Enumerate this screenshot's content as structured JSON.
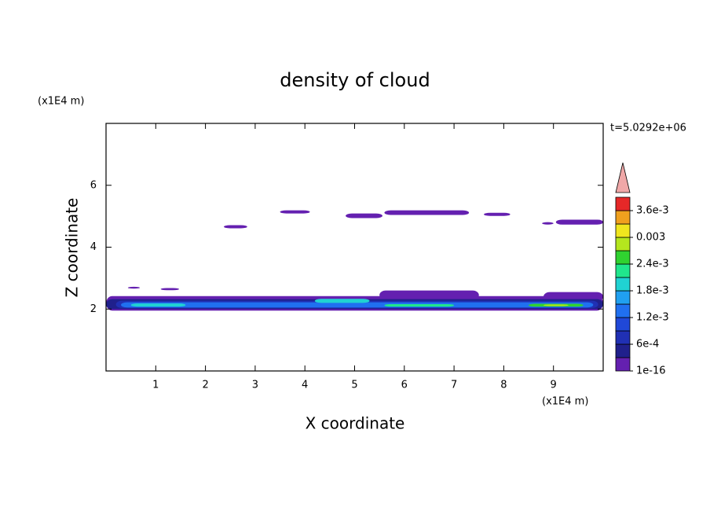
{
  "chart_data": {
    "type": "contour",
    "title": "density of cloud",
    "x_label": "X coordinate",
    "y_label": "Z coordinate",
    "x_unit": "(x1E4 m)",
    "y_unit": "(x1E4 m)",
    "time_label": "t=5.0292e+06",
    "xlim": [
      0,
      10
    ],
    "ylim": [
      0,
      8
    ],
    "xticks": [
      1,
      2,
      3,
      4,
      5,
      6,
      7,
      8,
      9
    ],
    "yticks": [
      2,
      4,
      6
    ],
    "colorbar": {
      "clim": [
        0,
        0.0039
      ],
      "over_color": "#f0a8a8",
      "colors": [
        "#6420b0",
        "#20208c",
        "#2030b4",
        "#2048d8",
        "#2070f0",
        "#20a0f0",
        "#20d2d2",
        "#20e68c",
        "#30d230",
        "#b4e61e",
        "#f0e61e",
        "#f0a01e",
        "#e62828"
      ],
      "ticks": [
        {
          "value": 1e-16,
          "label": "1e-16"
        },
        {
          "value": 0.0006,
          "label": "6e-4"
        },
        {
          "value": 0.0012,
          "label": "1.2e-3"
        },
        {
          "value": 0.0018,
          "label": "1.8e-3"
        },
        {
          "value": 0.0024,
          "label": "2.4e-3"
        },
        {
          "value": 0.003,
          "label": "0.003"
        },
        {
          "value": 0.0036,
          "label": "3.6e-3"
        }
      ]
    },
    "patches": [
      {
        "x": [
          2.37,
          2.84
        ],
        "z": [
          4.61,
          4.71
        ],
        "value": 0.00015
      },
      {
        "x": [
          3.5,
          4.1
        ],
        "z": [
          5.09,
          5.19
        ],
        "value": 0.00015
      },
      {
        "x": [
          4.82,
          5.56
        ],
        "z": [
          4.94,
          5.09
        ],
        "value": 0.00015
      },
      {
        "x": [
          5.6,
          7.3
        ],
        "z": [
          5.04,
          5.19
        ],
        "value": 0.00015
      },
      {
        "x": [
          7.6,
          8.13
        ],
        "z": [
          5.01,
          5.11
        ],
        "value": 0.00015
      },
      {
        "x": [
          8.77,
          9.0
        ],
        "z": [
          4.73,
          4.81
        ],
        "value": 0.00015
      },
      {
        "x": [
          9.05,
          10
        ],
        "z": [
          4.73,
          4.89
        ],
        "value": 0.00015
      },
      {
        "x": [
          0.44,
          0.68
        ],
        "z": [
          2.66,
          2.72
        ],
        "value": 0.00015
      },
      {
        "x": [
          1.1,
          1.47
        ],
        "z": [
          2.61,
          2.68
        ],
        "value": 0.00015
      },
      {
        "x": [
          5.5,
          7.5
        ],
        "z": [
          2.3,
          2.6
        ],
        "value": 0.00015
      },
      {
        "x": [
          8.8,
          10
        ],
        "z": [
          2.25,
          2.55
        ],
        "value": 0.00015
      },
      {
        "x": [
          0,
          10
        ],
        "z": [
          1.95,
          2.42
        ],
        "value": 0.00015
      },
      {
        "x": [
          0,
          10
        ],
        "z": [
          2.0,
          2.32
        ],
        "value": 0.00045
      },
      {
        "x": [
          0.2,
          9.9
        ],
        "z": [
          2.03,
          2.27
        ],
        "value": 0.00075
      },
      {
        "x": [
          0.3,
          9.8
        ],
        "z": [
          2.05,
          2.22
        ],
        "value": 0.00125
      },
      {
        "x": [
          0.5,
          1.6
        ],
        "z": [
          2.08,
          2.18
        ],
        "value": 0.0018
      },
      {
        "x": [
          4.2,
          5.3
        ],
        "z": [
          2.2,
          2.33
        ],
        "value": 0.0018
      },
      {
        "x": [
          5.6,
          7.0
        ],
        "z": [
          2.08,
          2.16
        ],
        "value": 0.0021
      },
      {
        "x": [
          8.5,
          9.6
        ],
        "z": [
          2.08,
          2.17
        ],
        "value": 0.0024
      },
      {
        "x": [
          8.8,
          9.3
        ],
        "z": [
          2.1,
          2.15
        ],
        "value": 0.0028
      }
    ]
  }
}
